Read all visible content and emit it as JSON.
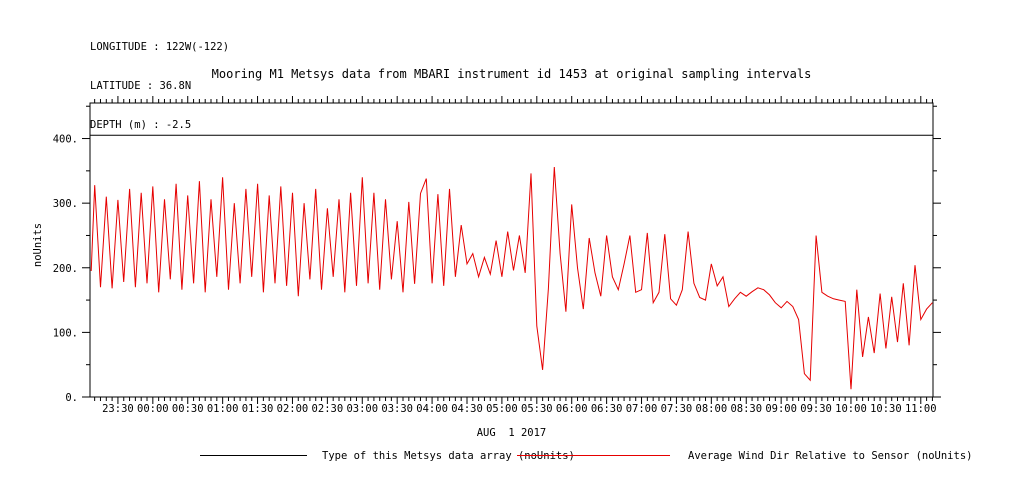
{
  "header": {
    "lines": [
      "LONGITUDE : 122W(-122)",
      "LATITUDE : 36.8N",
      "DEPTH (m) : -2.5"
    ]
  },
  "legend": {
    "items": [
      {
        "label": "Type of this Metsys data array (noUnits)",
        "color": "#000000"
      },
      {
        "label": "Average Wind Dir Relative to Sensor (noUnits)",
        "color": "#e60000"
      }
    ]
  },
  "chart_data": {
    "type": "line",
    "title": "Mooring M1 Metsys data from MBARI instrument id 1453 at original sampling intervals",
    "ylabel": "noUnits",
    "xlabel_date": "AUG  1 2017",
    "ylim": [
      0,
      455
    ],
    "grid": false,
    "legend_position": "bottom",
    "x_ticks": [
      "23:30",
      "00:00",
      "00:30",
      "01:00",
      "01:30",
      "02:00",
      "02:30",
      "03:00",
      "03:30",
      "04:00",
      "04:30",
      "05:00",
      "05:30",
      "06:00",
      "06:30",
      "07:00",
      "07:30",
      "08:00",
      "08:30",
      "09:00",
      "09:30",
      "10:00",
      "10:30",
      "11:00"
    ],
    "y_ticks": [
      {
        "value": 0,
        "label": "0."
      },
      {
        "value": 100,
        "label": "100."
      },
      {
        "value": 200,
        "label": "200."
      },
      {
        "value": 300,
        "label": "300."
      },
      {
        "value": 400,
        "label": "400."
      }
    ],
    "series": [
      {
        "name": "Type of this Metsys data array (noUnits)",
        "style": "constant",
        "color": "#000000",
        "value": 405
      },
      {
        "name": "Average Wind Dir Relative to Sensor (noUnits)",
        "style": "line",
        "color": "#e60000",
        "times": [
          "23:07",
          "23:10",
          "23:15",
          "23:20",
          "23:25",
          "23:30",
          "23:35",
          "23:40",
          "23:45",
          "23:50",
          "23:55",
          "00:00",
          "00:05",
          "00:10",
          "00:15",
          "00:20",
          "00:25",
          "00:30",
          "00:35",
          "00:40",
          "00:45",
          "00:50",
          "00:55",
          "01:00",
          "01:05",
          "01:10",
          "01:15",
          "01:20",
          "01:25",
          "01:30",
          "01:35",
          "01:40",
          "01:45",
          "01:50",
          "01:55",
          "02:00",
          "02:05",
          "02:10",
          "02:15",
          "02:20",
          "02:25",
          "02:30",
          "02:35",
          "02:40",
          "02:45",
          "02:50",
          "02:55",
          "03:00",
          "03:05",
          "03:10",
          "03:15",
          "03:20",
          "03:25",
          "03:30",
          "03:35",
          "03:40",
          "03:45",
          "03:50",
          "03:55",
          "04:00",
          "04:05",
          "04:10",
          "04:15",
          "04:20",
          "04:25",
          "04:30",
          "04:35",
          "04:40",
          "04:45",
          "04:50",
          "04:55",
          "05:00",
          "05:05",
          "05:10",
          "05:15",
          "05:20",
          "05:25",
          "05:30",
          "05:35",
          "05:40",
          "05:45",
          "05:50",
          "05:55",
          "06:00",
          "06:05",
          "06:10",
          "06:15",
          "06:20",
          "06:25",
          "06:30",
          "06:35",
          "06:40",
          "06:45",
          "06:50",
          "06:55",
          "07:00",
          "07:05",
          "07:10",
          "07:15",
          "07:20",
          "07:25",
          "07:30",
          "07:35",
          "07:40",
          "07:45",
          "07:50",
          "07:55",
          "08:00",
          "08:05",
          "08:10",
          "08:15",
          "08:20",
          "08:25",
          "08:30",
          "08:35",
          "08:40",
          "08:45",
          "08:50",
          "08:55",
          "09:00",
          "09:05",
          "09:10",
          "09:15",
          "09:20",
          "09:25",
          "09:30",
          "09:35",
          "09:40",
          "09:45",
          "09:50",
          "09:55",
          "10:00",
          "10:05",
          "10:10",
          "10:15",
          "10:20",
          "10:25",
          "10:30",
          "10:35",
          "10:40",
          "10:45",
          "10:50",
          "10:55",
          "11:00",
          "11:05",
          "11:10"
        ],
        "values": [
          195,
          328,
          170,
          310,
          168,
          305,
          178,
          322,
          170,
          316,
          176,
          326,
          162,
          306,
          182,
          330,
          166,
          312,
          176,
          334,
          162,
          306,
          186,
          340,
          166,
          300,
          176,
          322,
          186,
          330,
          162,
          312,
          176,
          326,
          172,
          316,
          156,
          300,
          182,
          322,
          166,
          292,
          186,
          306,
          162,
          316,
          172,
          340,
          176,
          316,
          166,
          306,
          182,
          272,
          162,
          302,
          175,
          315,
          338,
          176,
          314,
          172,
          322,
          186,
          266,
          206,
          222,
          186,
          216,
          190,
          242,
          186,
          256,
          196,
          250,
          192,
          346,
          110,
          42,
          168,
          356,
          222,
          132,
          298,
          200,
          136,
          246,
          192,
          156,
          250,
          186,
          166,
          206,
          250,
          162,
          166,
          254,
          146,
          162,
          252,
          152,
          142,
          166,
          256,
          176,
          154,
          150,
          206,
          172,
          186,
          140,
          152,
          162,
          156,
          163,
          169,
          166,
          158,
          146,
          138,
          148,
          140,
          120,
          36,
          26,
          250,
          162,
          156,
          152,
          150,
          148,
          12,
          166,
          62,
          124,
          68,
          160,
          75,
          155,
          85,
          176,
          80,
          204,
          120,
          136,
          146
        ]
      }
    ]
  }
}
